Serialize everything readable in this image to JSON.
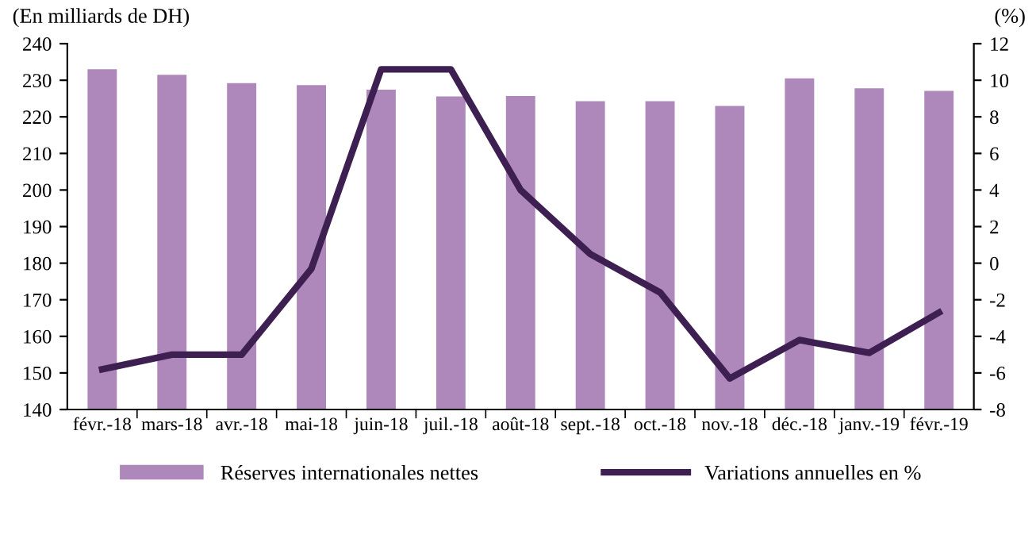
{
  "chart_data": {
    "type": "bar",
    "ylabel": "(En milliards de DH)",
    "y2label": "(%)",
    "categories": [
      "févr.-18",
      "mars-18",
      "avr.-18",
      "mai-18",
      "juin-18",
      "juil.-18",
      "août-18",
      "sept.-18",
      "oct.-18",
      "nov.-18",
      "déc.-18",
      "janv.-19",
      "févr.-19"
    ],
    "series": [
      {
        "name": "Réserves internationales nettes",
        "color": "#ae88bb",
        "values": [
          233,
          231.5,
          229.2,
          228.7,
          227.4,
          225.6,
          225.7,
          224.3,
          224.3,
          223,
          230.5,
          227.8,
          227.1
        ]
      },
      {
        "name": "Variations annuelles en %",
        "type": "line",
        "axis": "y2",
        "color": "#3d1f52",
        "values": [
          -5.8,
          -5.0,
          -5.0,
          -0.3,
          10.6,
          10.6,
          4.0,
          0.5,
          -1.6,
          -6.3,
          -4.2,
          -4.9,
          -2.7
        ]
      }
    ],
    "ylim": [
      140,
      240
    ],
    "yticks": [
      140,
      150,
      160,
      170,
      180,
      190,
      200,
      210,
      220,
      230,
      240
    ],
    "y2lim": [
      -8,
      12
    ],
    "y2ticks": [
      -8,
      -6,
      -4,
      -2,
      0,
      2,
      4,
      6,
      8,
      10,
      12
    ],
    "grid": false,
    "legend": "bottom"
  }
}
